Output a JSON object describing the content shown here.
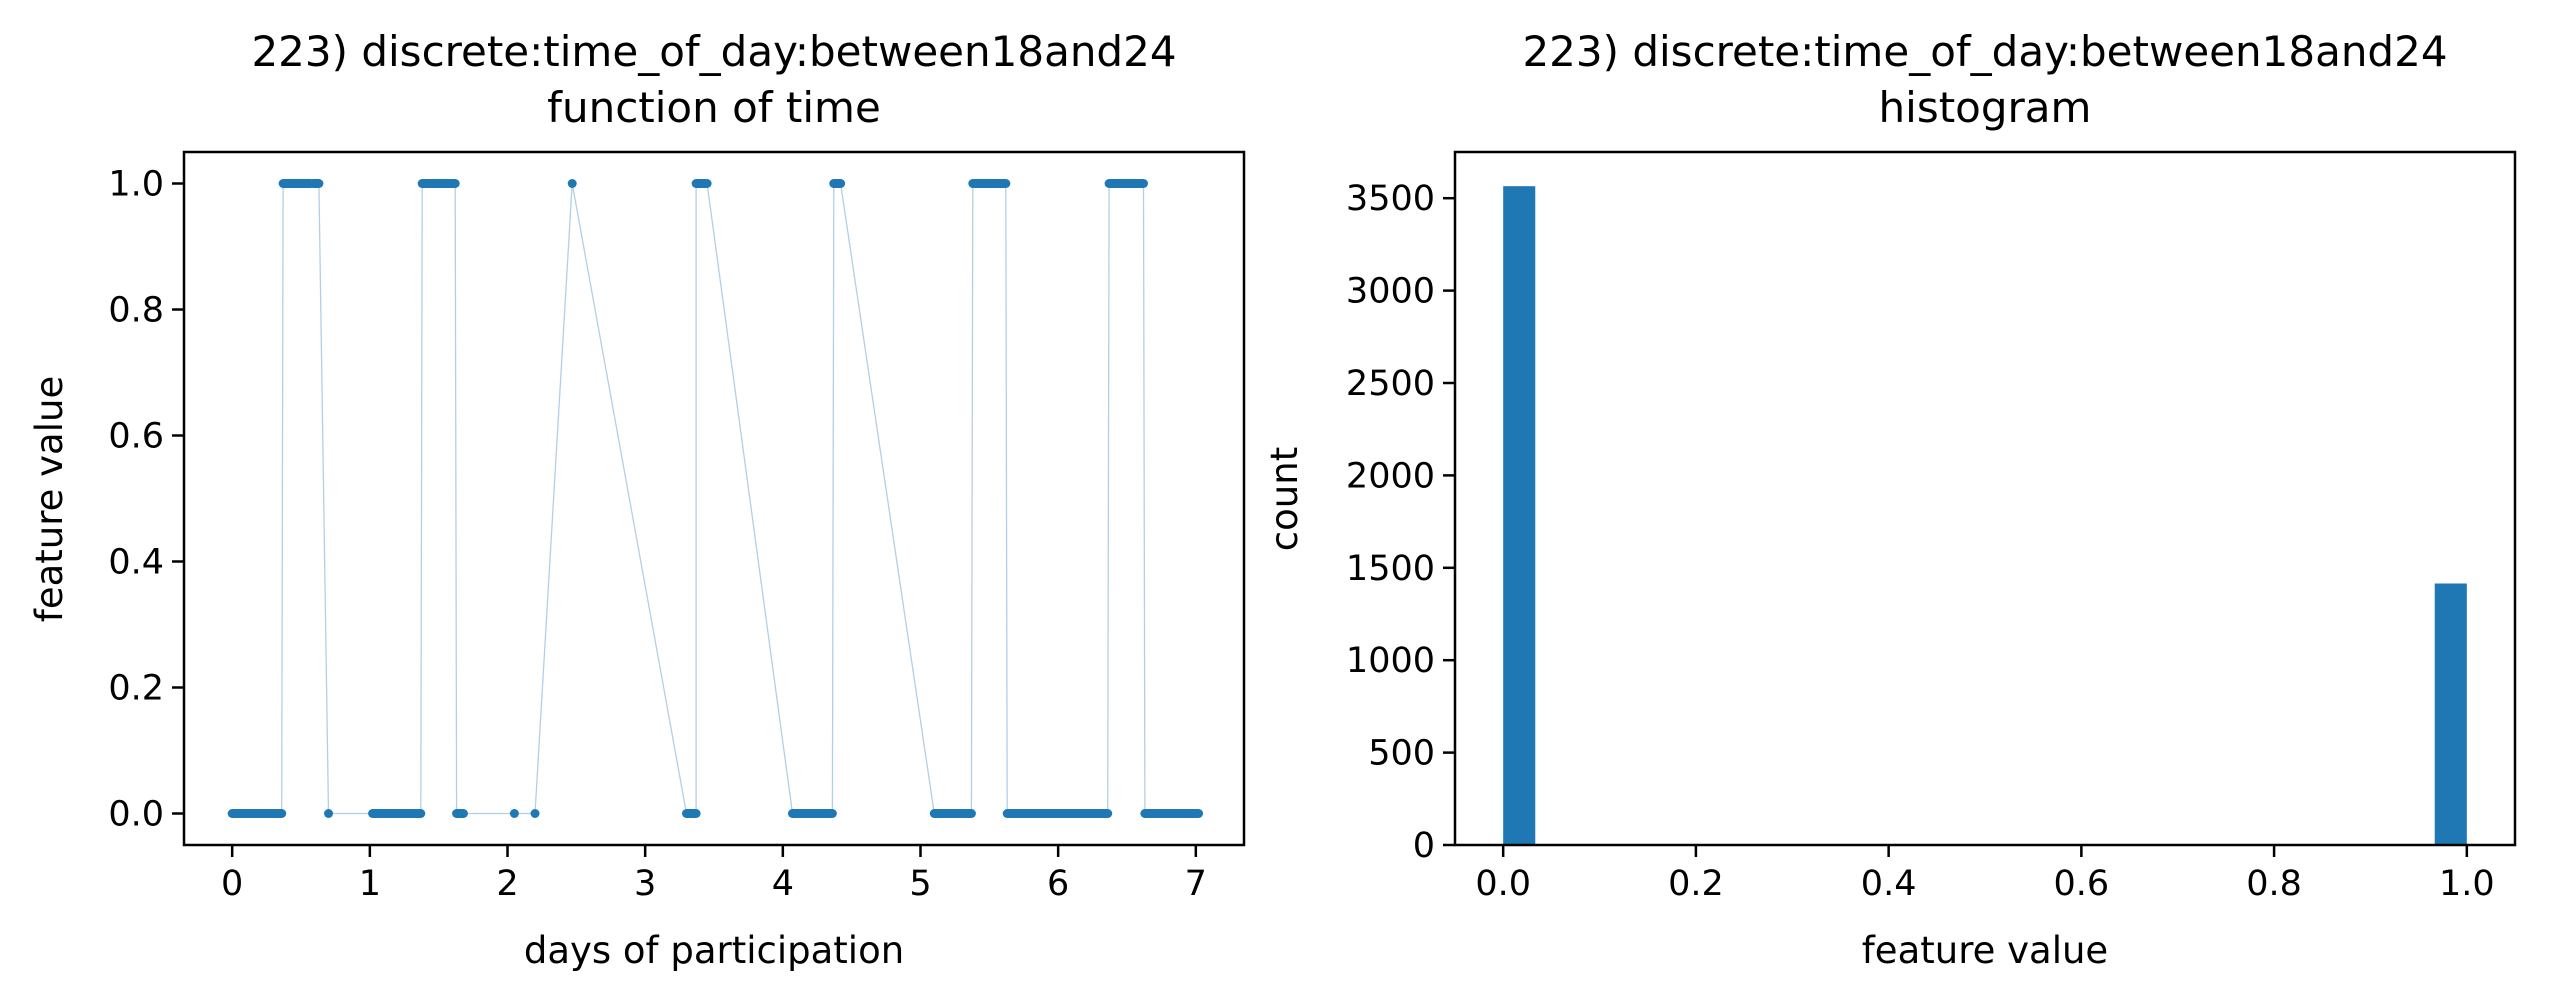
{
  "chart_data": [
    {
      "type": "line",
      "title": "223) discrete:time_of_day:between18and24",
      "subtitle": "function of time",
      "xlabel": "days of participation",
      "ylabel": "feature value",
      "xlim": [
        -0.35,
        7.35
      ],
      "ylim": [
        -0.05,
        1.05
      ],
      "xticks": [
        0,
        1,
        2,
        3,
        4,
        5,
        6,
        7
      ],
      "yticks": [
        0.0,
        0.2,
        0.4,
        0.6,
        0.8,
        1.0
      ],
      "ytick_labels": [
        "0.0",
        "0.2",
        "0.4",
        "0.6",
        "0.8",
        "1.0"
      ],
      "color": "#1f77b4",
      "marker": "dot",
      "grid": false,
      "series": [
        {
          "segments": [
            {
              "x0": 0.0,
              "x1": 0.36,
              "y": 0
            },
            {
              "x0": 0.37,
              "x1": 0.57,
              "y": 1
            },
            {
              "x0": 0.59,
              "x1": 0.63,
              "y": 1
            },
            {
              "x0": 0.7,
              "x1": 0.7,
              "y": 0
            },
            {
              "x0": 1.02,
              "x1": 1.37,
              "y": 0
            },
            {
              "x0": 1.38,
              "x1": 1.62,
              "y": 1
            },
            {
              "x0": 1.63,
              "x1": 1.68,
              "y": 0
            },
            {
              "x0": 2.05,
              "x1": 2.05,
              "y": 0
            },
            {
              "x0": 2.2,
              "x1": 2.2,
              "y": 0
            },
            {
              "x0": 2.47,
              "x1": 2.47,
              "y": 1
            },
            {
              "x0": 3.3,
              "x1": 3.37,
              "y": 0
            },
            {
              "x0": 3.37,
              "x1": 3.45,
              "y": 1
            },
            {
              "x0": 4.07,
              "x1": 4.36,
              "y": 0
            },
            {
              "x0": 4.37,
              "x1": 4.42,
              "y": 1
            },
            {
              "x0": 5.1,
              "x1": 5.37,
              "y": 0
            },
            {
              "x0": 5.38,
              "x1": 5.62,
              "y": 1
            },
            {
              "x0": 5.63,
              "x1": 6.36,
              "y": 0
            },
            {
              "x0": 6.37,
              "x1": 6.62,
              "y": 1
            },
            {
              "x0": 6.63,
              "x1": 7.02,
              "y": 0
            }
          ]
        }
      ]
    },
    {
      "type": "bar",
      "title": "223) discrete:time_of_day:between18and24",
      "subtitle": "histogram",
      "xlabel": "feature value",
      "ylabel": "count",
      "xlim": [
        -0.05,
        1.05
      ],
      "ylim": [
        0,
        3750
      ],
      "xticks": [
        0.0,
        0.2,
        0.4,
        0.6,
        0.8,
        1.0
      ],
      "xtick_labels": [
        "0.0",
        "0.2",
        "0.4",
        "0.6",
        "0.8",
        "1.0"
      ],
      "yticks": [
        0,
        500,
        1000,
        1500,
        2000,
        2500,
        3000,
        3500
      ],
      "color": "#1f77b4",
      "grid": false,
      "bins": 30,
      "bars": [
        {
          "x0": 0.0,
          "x1": 0.0333,
          "count": 3565
        },
        {
          "x0": 0.9667,
          "x1": 1.0,
          "count": 1415
        }
      ]
    }
  ]
}
